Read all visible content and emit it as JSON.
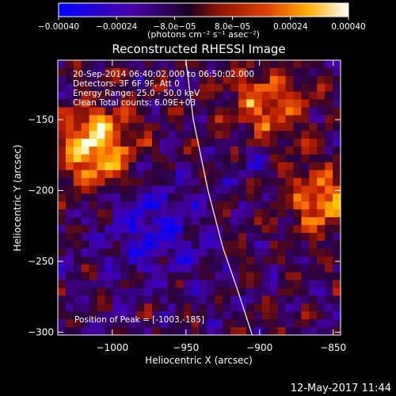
{
  "chart_data": {
    "type": "heatmap",
    "title": "Reconstructed RHESSI Image",
    "xlabel": "Heliocentric X (arcsec)",
    "ylabel": "Heliocentric Y (arcsec)",
    "xlim": [
      -1037,
      -845
    ],
    "ylim": [
      -302,
      -108
    ],
    "x_ticks": [
      -1000,
      -950,
      -900,
      -850
    ],
    "x_tick_labels": [
      "−1000",
      "−950",
      "−900",
      "−850"
    ],
    "y_ticks": [
      -300,
      -250,
      -200,
      -150
    ],
    "y_tick_labels": [
      "−300",
      "−250",
      "−200",
      "−150"
    ],
    "colorbar": {
      "range": [
        -0.0004,
        0.0004
      ],
      "ticks": [
        -0.0004,
        -0.00024,
        -8e-05,
        8e-05,
        0.00024,
        0.0004
      ],
      "tick_labels": [
        "−0.00040",
        "−0.00024",
        "−8.0e−05",
        "8.0e−05",
        "0.00024",
        "0.00040"
      ],
      "units": "(photons cm⁻² s⁻¹ asec⁻²)",
      "colormap": [
        "#0000ff",
        "#4b00a8",
        "#2a0040",
        "#8a1400",
        "#d83a00",
        "#ff7a00",
        "#ffcc00",
        "#ffffff"
      ]
    },
    "annotations": [
      "20-Sep-2014 06:40:02.000 to 06:50:02.000",
      "Detectors: 3F 6F 9F, Att 0",
      "Energy Range: 25.0 - 50.0 keV",
      "Clean    Total counts: 6.09E+03"
    ],
    "peak_text": "Position of Peak = [-1003,-185]",
    "limb_line": {
      "x": [
        -950,
        -945,
        -935,
        -925,
        -915,
        -905
      ],
      "y": [
        -108,
        -150,
        -200,
        -240,
        -270,
        -302
      ]
    },
    "grid": false
  },
  "footer": {
    "timestamp": "12-May-2017 11:44"
  }
}
